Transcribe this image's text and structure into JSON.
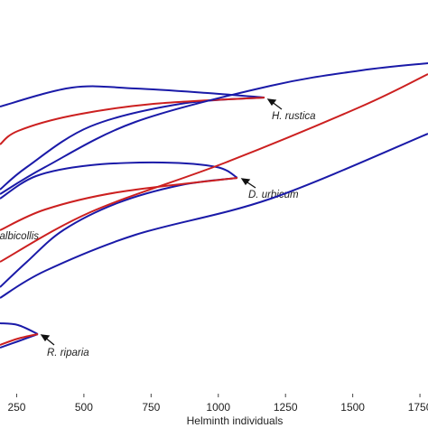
{
  "chart_data": {
    "type": "line",
    "xlabel": "Helminth individuals",
    "xlim": [
      188,
      1780
    ],
    "xticks": [
      250,
      500,
      750,
      1000,
      1250,
      1500,
      1750
    ],
    "ylim": [
      0,
      435
    ],
    "series": [
      {
        "color": "#1a1aa8",
        "x": [
          188,
          456,
          692,
          960,
          1172
        ],
        "values": [
          317,
          338,
          337,
          332,
          327
        ]
      },
      {
        "color": "#1a1aa8",
        "x": [
          1172,
          860,
          524,
          288,
          188
        ],
        "values": [
          327,
          320,
          295,
          250,
          225
        ]
      },
      {
        "color": "#cc2020",
        "x": [
          188,
          255,
          456,
          759,
          1172
        ],
        "values": [
          275,
          290,
          307,
          320,
          327
        ]
      },
      {
        "color": "#1a1aa8",
        "x": [
          188,
          356,
          692,
          1195,
          1531,
          1780
        ],
        "values": [
          220,
          250,
          300,
          340,
          357,
          365
        ]
      },
      {
        "color": "#1a1aa8",
        "x": [
          188,
          322,
          524,
          792,
          994,
          1071
        ],
        "values": [
          215,
          240,
          252,
          255,
          250,
          238
        ]
      },
      {
        "color": "#1a1aa8",
        "x": [
          1071,
          860,
          624,
          423,
          288,
          188
        ],
        "values": [
          238,
          230,
          210,
          180,
          145,
          117
        ]
      },
      {
        "color": "#cc2020",
        "x": [
          188,
          356,
          624,
          1071
        ],
        "values": [
          180,
          203,
          222,
          238
        ]
      },
      {
        "color": "#cc2020",
        "x": [
          188,
          524,
          1027,
          1531,
          1780
        ],
        "values": [
          145,
          200,
          255,
          317,
          353
        ]
      },
      {
        "color": "#1a1aa8",
        "x": [
          188,
          356,
          692,
          1195,
          1780
        ],
        "values": [
          105,
          135,
          175,
          215,
          287
        ]
      },
      {
        "color": "#1a1aa8",
        "x": [
          188,
          255,
          329
        ],
        "values": [
          77,
          75,
          65
        ]
      },
      {
        "color": "#1a1aa8",
        "x": [
          329,
          255,
          188
        ],
        "values": [
          65,
          57,
          50
        ]
      },
      {
        "color": "#cc2020",
        "x": [
          188,
          255,
          329
        ],
        "values": [
          53,
          60,
          65
        ]
      }
    ],
    "annotations": [
      "H. rustica",
      "D. urbicum",
      "albicollis",
      "R. riparia"
    ]
  }
}
